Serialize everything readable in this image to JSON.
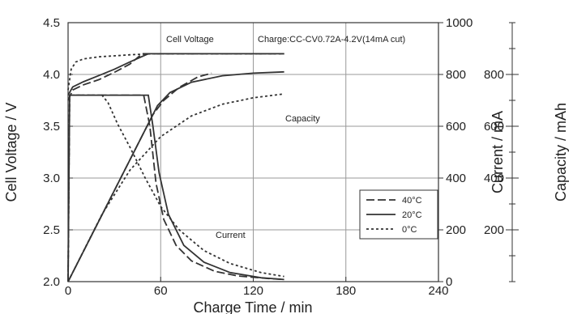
{
  "chart_data": {
    "type": "line",
    "xlabel": "Charge Time  /  min",
    "ylabel_left": "Cell Voltage  /  V",
    "ylabel_right1": "Current  /  mA",
    "ylabel_right2": "Capacity  /  mAh",
    "xlim": [
      0,
      240
    ],
    "ylim_left": [
      2.0,
      4.5
    ],
    "ylim_right1": [
      0,
      1000
    ],
    "ylim_right2": [
      0,
      1000
    ],
    "x_ticks": [
      "0",
      "60",
      "120",
      "180",
      "240"
    ],
    "y_left_ticks": [
      "2.0",
      "2.5",
      "3.0",
      "3.5",
      "4.0",
      "4.5"
    ],
    "y_right1_ticks": [
      "0",
      "200",
      "400",
      "600",
      "800",
      "1000"
    ],
    "y_right2_ticks": [
      "200",
      "400",
      "600",
      "800"
    ],
    "grid": true,
    "legend_placement": "lower-right",
    "annotations": {
      "cell_voltage": "Cell Voltage",
      "charge_condition": "Charge:CC-CV0.72A-4.2V(14mA cut)",
      "capacity": "Capacity",
      "current": "Current"
    },
    "series": [
      {
        "name": "40°C",
        "dash": "long-dash",
        "voltage": [
          [
            0,
            3.75
          ],
          [
            3,
            3.85
          ],
          [
            10,
            3.9
          ],
          [
            20,
            3.95
          ],
          [
            30,
            4.02
          ],
          [
            40,
            4.1
          ],
          [
            48,
            4.2
          ],
          [
            140,
            4.2
          ]
        ],
        "current": [
          [
            0,
            0
          ],
          [
            1,
            720
          ],
          [
            49,
            720
          ],
          [
            53,
            600
          ],
          [
            57,
            380
          ],
          [
            62,
            240
          ],
          [
            70,
            140
          ],
          [
            80,
            80
          ],
          [
            95,
            40
          ],
          [
            110,
            22
          ],
          [
            130,
            12
          ],
          [
            140,
            8
          ]
        ],
        "capacity": [
          [
            0,
            0
          ],
          [
            49,
            575
          ],
          [
            55,
            645
          ],
          [
            62,
            700
          ],
          [
            72,
            750
          ],
          [
            84,
            790
          ],
          [
            93,
            805
          ]
        ]
      },
      {
        "name": "20°C",
        "dash": "solid",
        "voltage": [
          [
            0,
            3.8
          ],
          [
            3,
            3.88
          ],
          [
            10,
            3.93
          ],
          [
            20,
            3.99
          ],
          [
            30,
            4.05
          ],
          [
            40,
            4.12
          ],
          [
            52,
            4.2
          ],
          [
            140,
            4.2
          ]
        ],
        "current": [
          [
            0,
            0
          ],
          [
            1,
            720
          ],
          [
            52,
            720
          ],
          [
            55,
            600
          ],
          [
            59,
            420
          ],
          [
            65,
            260
          ],
          [
            75,
            140
          ],
          [
            88,
            75
          ],
          [
            105,
            35
          ],
          [
            125,
            15
          ],
          [
            140,
            8
          ]
        ],
        "capacity": [
          [
            0,
            0
          ],
          [
            52,
            610
          ],
          [
            58,
            680
          ],
          [
            66,
            730
          ],
          [
            80,
            770
          ],
          [
            100,
            795
          ],
          [
            120,
            805
          ],
          [
            140,
            810
          ]
        ]
      },
      {
        "name": "0°C",
        "dash": "short-dash",
        "voltage": [
          [
            0,
            3.85
          ],
          [
            2,
            4.05
          ],
          [
            5,
            4.12
          ],
          [
            10,
            4.15
          ],
          [
            20,
            4.17
          ],
          [
            30,
            4.18
          ],
          [
            40,
            4.19
          ],
          [
            55,
            4.2
          ],
          [
            140,
            4.2
          ]
        ],
        "current": [
          [
            0,
            0
          ],
          [
            1,
            720
          ],
          [
            22,
            720
          ],
          [
            26,
            690
          ],
          [
            32,
            610
          ],
          [
            40,
            520
          ],
          [
            50,
            400
          ],
          [
            60,
            290
          ],
          [
            72,
            200
          ],
          [
            88,
            120
          ],
          [
            105,
            70
          ],
          [
            125,
            35
          ],
          [
            140,
            20
          ]
        ],
        "capacity": [
          [
            0,
            0
          ],
          [
            22,
            260
          ],
          [
            40,
            430
          ],
          [
            60,
            560
          ],
          [
            80,
            640
          ],
          [
            100,
            685
          ],
          [
            120,
            710
          ],
          [
            140,
            725
          ]
        ]
      }
    ]
  }
}
